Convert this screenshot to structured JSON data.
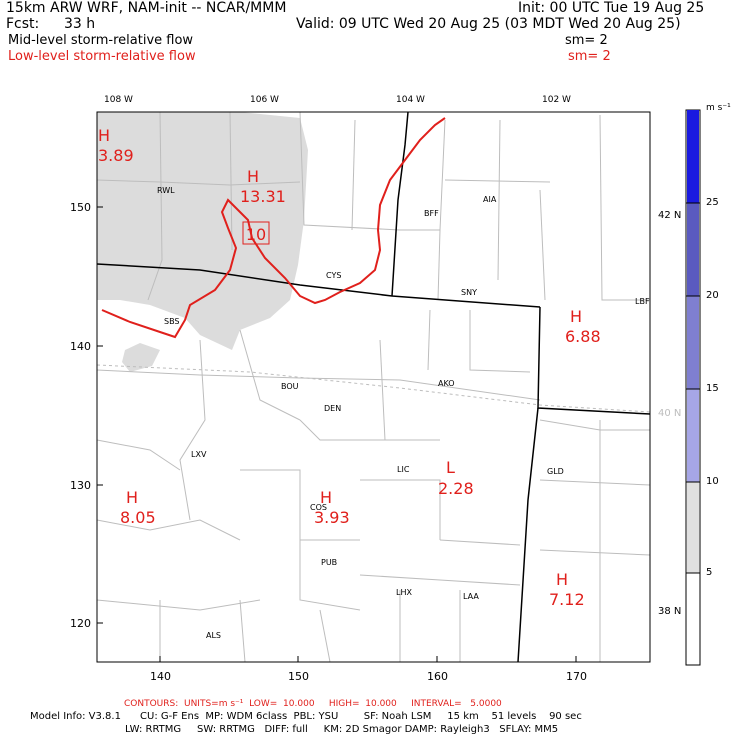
{
  "header": {
    "model_line": "15km ARW WRF, NAM-init -- NCAR/MMM",
    "fcst_label": "Fcst:",
    "fcst_value": "33 h",
    "init_line": "Init: 00 UTC Tue 19 Aug 25",
    "valid_line": "Valid: 09 UTC Wed 20 Aug 25 (03 MDT Wed 20 Aug 25)",
    "mid_label": "Mid-level storm-relative flow",
    "mid_sm": "sm= 2",
    "low_label": "Low-level storm-relative flow",
    "low_sm": "sm= 2"
  },
  "map": {
    "top_lon_labels": [
      "108 W",
      "106 W",
      "104 W",
      "102 W"
    ],
    "right_lat_labels": [
      "42 N",
      "40 N",
      "38 N"
    ],
    "left_grid_labels": [
      "150",
      "140",
      "130",
      "120"
    ],
    "bottom_grid_labels": [
      "140",
      "150",
      "160",
      "170"
    ],
    "stations": [
      "RWL",
      "BFF",
      "AIA",
      "CYS",
      "SNY",
      "LBF",
      "SBS",
      "BOU",
      "AKO",
      "DEN",
      "LXV",
      "LIC",
      "GLD",
      "COS",
      "PUB",
      "LHX",
      "LAA",
      "ALS"
    ],
    "extrema": [
      {
        "letter": "H",
        "value": "3.89"
      },
      {
        "letter": "H",
        "value": "13.31"
      },
      {
        "letter": "H",
        "value": "6.88"
      },
      {
        "letter": "H",
        "value": "8.05"
      },
      {
        "letter": "H",
        "value": "3.93"
      },
      {
        "letter": "L",
        "value": "2.28"
      },
      {
        "letter": "H",
        "value": "7.12"
      }
    ],
    "box_label": "10"
  },
  "colorbar": {
    "units": "m s⁻¹",
    "labels": [
      "25",
      "20",
      "15",
      "10",
      "5"
    ],
    "colors": [
      "#ffffff",
      "#e0e0e0",
      "#a6a6e6",
      "#7f7fd0",
      "#5a5ac0",
      "#3636cc",
      "#0d0df0"
    ]
  },
  "footer": {
    "contours": "CONTOURS:  UNITS=m s⁻¹  LOW=  10.000     HIGH=  10.000     INTERVAL=   5.0000",
    "model_info_1": "Model Info: V3.8.1      CU: G-F Ens  MP: WDM 6class  PBL: YSU        SF: Noah LSM     15 km    51 levels    90 sec",
    "model_info_2": "LW: RRTMG     SW: RRTMG   DIFF: full     KM: 2D Smagor DAMP: Rayleigh3   SFLAY: MM5"
  }
}
